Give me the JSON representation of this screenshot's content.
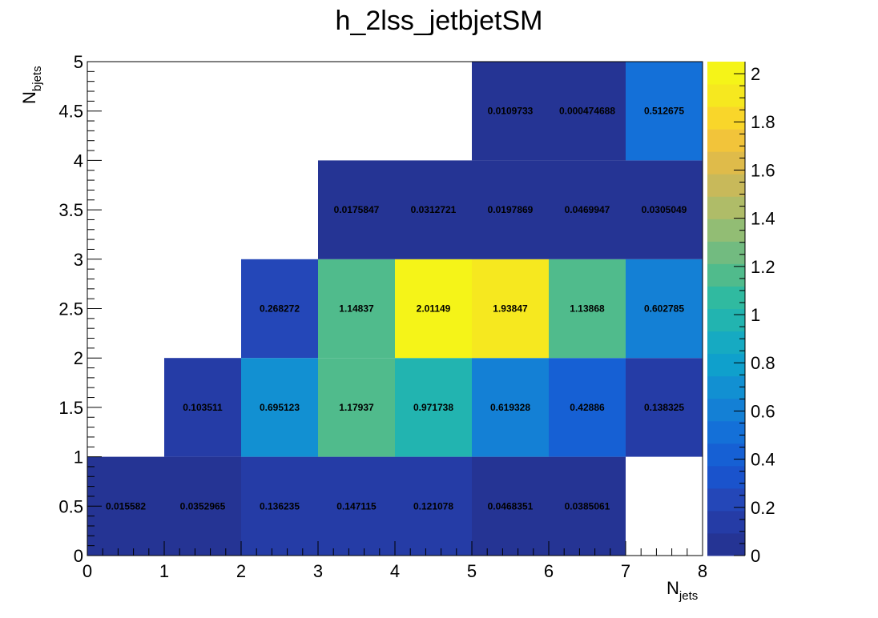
{
  "chart_data": {
    "type": "heatmap",
    "title": "h_2lss_jetbjetSM",
    "xlabel": "N",
    "xlabel_sub": "jets",
    "ylabel": "N",
    "ylabel_sub": "bjets",
    "xlim": [
      0,
      8
    ],
    "ylim": [
      0,
      5
    ],
    "x_ticks": [
      "0",
      "1",
      "2",
      "3",
      "4",
      "5",
      "6",
      "7",
      "8"
    ],
    "y_ticks": [
      "0",
      "0.5",
      "1",
      "1.5",
      "2",
      "2.5",
      "3",
      "3.5",
      "4",
      "4.5",
      "5"
    ],
    "zlim": [
      0,
      2.05
    ],
    "z_ticks": [
      "0",
      "0.2",
      "0.4",
      "0.6",
      "0.8",
      "1",
      "1.2",
      "1.4",
      "1.6",
      "1.8",
      "2"
    ],
    "cells": [
      {
        "x": 0,
        "y": 0,
        "value": 0.015582,
        "label": "0.015582"
      },
      {
        "x": 1,
        "y": 0,
        "value": 0.0352965,
        "label": "0.0352965"
      },
      {
        "x": 2,
        "y": 0,
        "value": 0.136235,
        "label": "0.136235"
      },
      {
        "x": 3,
        "y": 0,
        "value": 0.147115,
        "label": "0.147115"
      },
      {
        "x": 4,
        "y": 0,
        "value": 0.121078,
        "label": "0.121078"
      },
      {
        "x": 5,
        "y": 0,
        "value": 0.0468351,
        "label": "0.0468351"
      },
      {
        "x": 6,
        "y": 0,
        "value": 0.0385061,
        "label": "0.0385061"
      },
      {
        "x": 1,
        "y": 1,
        "value": 0.103511,
        "label": "0.103511"
      },
      {
        "x": 2,
        "y": 1,
        "value": 0.695123,
        "label": "0.695123"
      },
      {
        "x": 3,
        "y": 1,
        "value": 1.17937,
        "label": "1.17937"
      },
      {
        "x": 4,
        "y": 1,
        "value": 0.971738,
        "label": "0.971738"
      },
      {
        "x": 5,
        "y": 1,
        "value": 0.619328,
        "label": "0.619328"
      },
      {
        "x": 6,
        "y": 1,
        "value": 0.42886,
        "label": "0.42886"
      },
      {
        "x": 7,
        "y": 1,
        "value": 0.138325,
        "label": "0.138325"
      },
      {
        "x": 2,
        "y": 2,
        "value": 0.268272,
        "label": "0.268272"
      },
      {
        "x": 3,
        "y": 2,
        "value": 1.14837,
        "label": "1.14837"
      },
      {
        "x": 4,
        "y": 2,
        "value": 2.01149,
        "label": "2.01149"
      },
      {
        "x": 5,
        "y": 2,
        "value": 1.93847,
        "label": "1.93847"
      },
      {
        "x": 6,
        "y": 2,
        "value": 1.13868,
        "label": "1.13868"
      },
      {
        "x": 7,
        "y": 2,
        "value": 0.602785,
        "label": "0.602785"
      },
      {
        "x": 3,
        "y": 3,
        "value": 0.0175847,
        "label": "0.0175847"
      },
      {
        "x": 4,
        "y": 3,
        "value": 0.0312721,
        "label": "0.0312721"
      },
      {
        "x": 5,
        "y": 3,
        "value": 0.0197869,
        "label": "0.0197869"
      },
      {
        "x": 6,
        "y": 3,
        "value": 0.0469947,
        "label": "0.0469947"
      },
      {
        "x": 7,
        "y": 3,
        "value": 0.0305049,
        "label": "0.0305049"
      },
      {
        "x": 5,
        "y": 4,
        "value": 0.0109733,
        "label": "0.0109733"
      },
      {
        "x": 6,
        "y": 4,
        "value": 0.000474688,
        "label": "0.000474688"
      },
      {
        "x": 7,
        "y": 4,
        "value": 0.512675,
        "label": "0.512675"
      }
    ],
    "palette": [
      "#253494",
      "#253ca6",
      "#2447b8",
      "#1a53cc",
      "#1660d4",
      "#1470d8",
      "#1480d5",
      "#1290d2",
      "#0fa0cc",
      "#16aac2",
      "#22b4b0",
      "#30baa0",
      "#50bb8c",
      "#72bb80",
      "#92bd74",
      "#afbc68",
      "#c8b95a",
      "#dfbb4a",
      "#f2c43a",
      "#f9d62a",
      "#f6e81f",
      "#f5f418"
    ]
  }
}
